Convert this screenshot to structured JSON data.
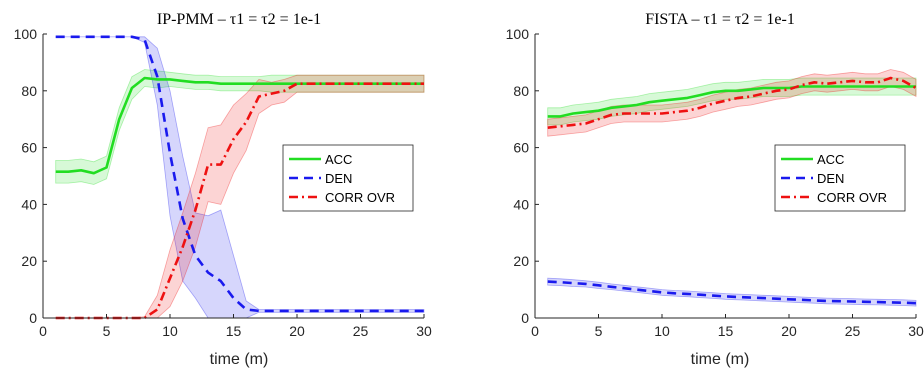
{
  "chart_data": [
    {
      "type": "line",
      "title": "IP-PMM – τ1 = τ2 = 1e-1",
      "xlabel": "time (m)",
      "ylabel": "",
      "xlim": [
        0,
        30
      ],
      "ylim": [
        0,
        100
      ],
      "xticks": [
        "0",
        "5",
        "10",
        "15",
        "20",
        "25",
        "30"
      ],
      "yticks": [
        "0",
        "20",
        "40",
        "60",
        "80",
        "100"
      ],
      "grid": false,
      "legend_position": "right-middle",
      "series": [
        {
          "name": "ACC",
          "color": "#22dd22",
          "style": "solid",
          "x": [
            1,
            2,
            3,
            4,
            5,
            6,
            7,
            8,
            9,
            10,
            11,
            12,
            13,
            14,
            15,
            16,
            17,
            18,
            19,
            20,
            21,
            22,
            23,
            24,
            25,
            26,
            27,
            28,
            29,
            30
          ],
          "y": [
            51.5,
            51.5,
            52,
            51,
            53,
            70,
            81,
            84.5,
            84,
            84,
            83.5,
            83,
            83,
            82.5,
            82.5,
            82.5,
            82.5,
            82.5,
            82.5,
            82.5,
            82.5,
            82.5,
            82.5,
            82.5,
            82.5,
            82.5,
            82.5,
            82.5,
            82.5,
            82.5
          ],
          "band": [
            4,
            4,
            4,
            4,
            4,
            4,
            4,
            3,
            3,
            2.5,
            2.5,
            2.5,
            2.5,
            2.5,
            2.5,
            2.5,
            2.5,
            3,
            3,
            3,
            3,
            3,
            3,
            3,
            3,
            3,
            3,
            3,
            3,
            3
          ]
        },
        {
          "name": "DEN",
          "color": "#1a1aee",
          "style": "dashed",
          "x": [
            1,
            2,
            3,
            4,
            5,
            6,
            7,
            8,
            9,
            10,
            11,
            12,
            13,
            14,
            15,
            16,
            17,
            18,
            19,
            20,
            21,
            22,
            23,
            24,
            25,
            26,
            27,
            28,
            29,
            30
          ],
          "y": [
            99,
            99,
            99,
            99,
            99,
            99,
            99,
            98,
            85,
            58,
            35,
            22,
            16,
            13,
            7,
            3,
            2.5,
            2.5,
            2.5,
            2.5,
            2.5,
            2.5,
            2.5,
            2.5,
            2.5,
            2.5,
            2.5,
            2.5,
            2.5,
            2.5
          ],
          "band": [
            0,
            0,
            0,
            0,
            0,
            0,
            0,
            1,
            10,
            22,
            22,
            15,
            20,
            25,
            15,
            3,
            0.5,
            0.5,
            0.5,
            0.5,
            0.5,
            0.5,
            0.5,
            0.5,
            0.5,
            0.5,
            0.5,
            0.5,
            0.5,
            0.5
          ]
        },
        {
          "name": "CORR OVR",
          "color": "#ee1111",
          "style": "dashdot",
          "x": [
            1,
            2,
            3,
            4,
            5,
            6,
            7,
            8,
            9,
            10,
            11,
            12,
            13,
            14,
            15,
            16,
            17,
            18,
            19,
            20,
            21,
            22,
            23,
            24,
            25,
            26,
            27,
            28,
            29,
            30
          ],
          "y": [
            0,
            0,
            0,
            0,
            0,
            0,
            0,
            0,
            3,
            14,
            25,
            38,
            54,
            54,
            63,
            69,
            78,
            79,
            80,
            82.5,
            82.5,
            82.5,
            82.5,
            82.5,
            82.5,
            82.5,
            82.5,
            82.5,
            82.5,
            82.5
          ],
          "band": [
            0,
            0,
            0,
            0,
            0,
            0,
            0,
            0.5,
            5,
            10,
            12,
            13,
            13,
            14,
            12,
            10,
            6,
            4,
            4,
            3,
            3,
            3,
            3,
            3,
            3,
            3,
            3,
            3,
            3,
            3
          ]
        }
      ]
    },
    {
      "type": "line",
      "title": "FISTA – τ1 = τ2 = 1e-1",
      "xlabel": "time (m)",
      "ylabel": "",
      "xlim": [
        0,
        30
      ],
      "ylim": [
        0,
        100
      ],
      "xticks": [
        "0",
        "5",
        "10",
        "15",
        "20",
        "25",
        "30"
      ],
      "yticks": [
        "0",
        "20",
        "40",
        "60",
        "80",
        "100"
      ],
      "grid": false,
      "legend_position": "right-middle",
      "series": [
        {
          "name": "ACC",
          "color": "#22dd22",
          "style": "solid",
          "x": [
            1,
            2,
            3,
            4,
            5,
            6,
            7,
            8,
            9,
            10,
            11,
            12,
            13,
            14,
            15,
            16,
            17,
            18,
            19,
            20,
            21,
            22,
            23,
            24,
            25,
            26,
            27,
            28,
            29,
            30
          ],
          "y": [
            71,
            71,
            72,
            72.5,
            73,
            74,
            74.5,
            75,
            76,
            76.5,
            77,
            77.5,
            78.5,
            79.5,
            80,
            80,
            80.5,
            81,
            81,
            81,
            81.5,
            81.5,
            81.5,
            81.5,
            81.5,
            81.5,
            81.5,
            81.5,
            81.5,
            81.5
          ],
          "band": [
            3,
            3,
            3,
            3,
            3,
            3,
            3,
            3,
            3,
            3,
            3,
            3,
            3,
            3,
            3,
            3,
            3,
            3,
            3,
            3,
            3,
            3,
            3,
            3,
            3,
            3,
            3,
            3,
            3,
            3
          ]
        },
        {
          "name": "DEN",
          "color": "#1a1aee",
          "style": "dashed",
          "x": [
            1,
            2,
            3,
            4,
            5,
            6,
            7,
            8,
            9,
            10,
            11,
            12,
            13,
            14,
            15,
            16,
            17,
            18,
            19,
            20,
            21,
            22,
            23,
            24,
            25,
            26,
            27,
            28,
            29,
            30
          ],
          "y": [
            12.8,
            12.6,
            12.3,
            12,
            11.5,
            11,
            10.5,
            10,
            9.5,
            9,
            8.7,
            8.5,
            8.2,
            7.9,
            7.6,
            7.4,
            7.2,
            7,
            6.8,
            6.6,
            6.4,
            6.2,
            6,
            5.9,
            5.8,
            5.7,
            5.6,
            5.5,
            5.4,
            5.2
          ],
          "band": [
            1.2,
            1.2,
            1.2,
            1.1,
            1.1,
            1,
            1,
            1,
            1,
            1,
            1,
            1,
            1,
            1,
            1,
            1,
            1,
            1,
            1,
            1,
            1,
            1,
            1,
            1,
            1,
            1,
            1,
            1,
            1,
            1
          ]
        },
        {
          "name": "CORR OVR",
          "color": "#ee1111",
          "style": "dashdot",
          "x": [
            1,
            2,
            3,
            4,
            5,
            6,
            7,
            8,
            9,
            10,
            11,
            12,
            13,
            14,
            15,
            16,
            17,
            18,
            19,
            20,
            21,
            22,
            23,
            24,
            25,
            26,
            27,
            28,
            29,
            30
          ],
          "y": [
            67,
            67.5,
            68,
            68.5,
            70,
            71.5,
            72,
            72,
            72,
            72,
            72.5,
            73,
            74,
            75.5,
            76.5,
            77.5,
            78,
            79,
            80,
            80.5,
            82,
            83,
            82.5,
            83,
            83.5,
            83,
            83,
            84.5,
            83.5,
            81
          ],
          "band": [
            3,
            3,
            3,
            3,
            3,
            3,
            3,
            3,
            3,
            3,
            3,
            3,
            3,
            3,
            3,
            3,
            3,
            3,
            3,
            3,
            3,
            3,
            3,
            3,
            3,
            3,
            3,
            3,
            3,
            3
          ]
        }
      ]
    }
  ]
}
